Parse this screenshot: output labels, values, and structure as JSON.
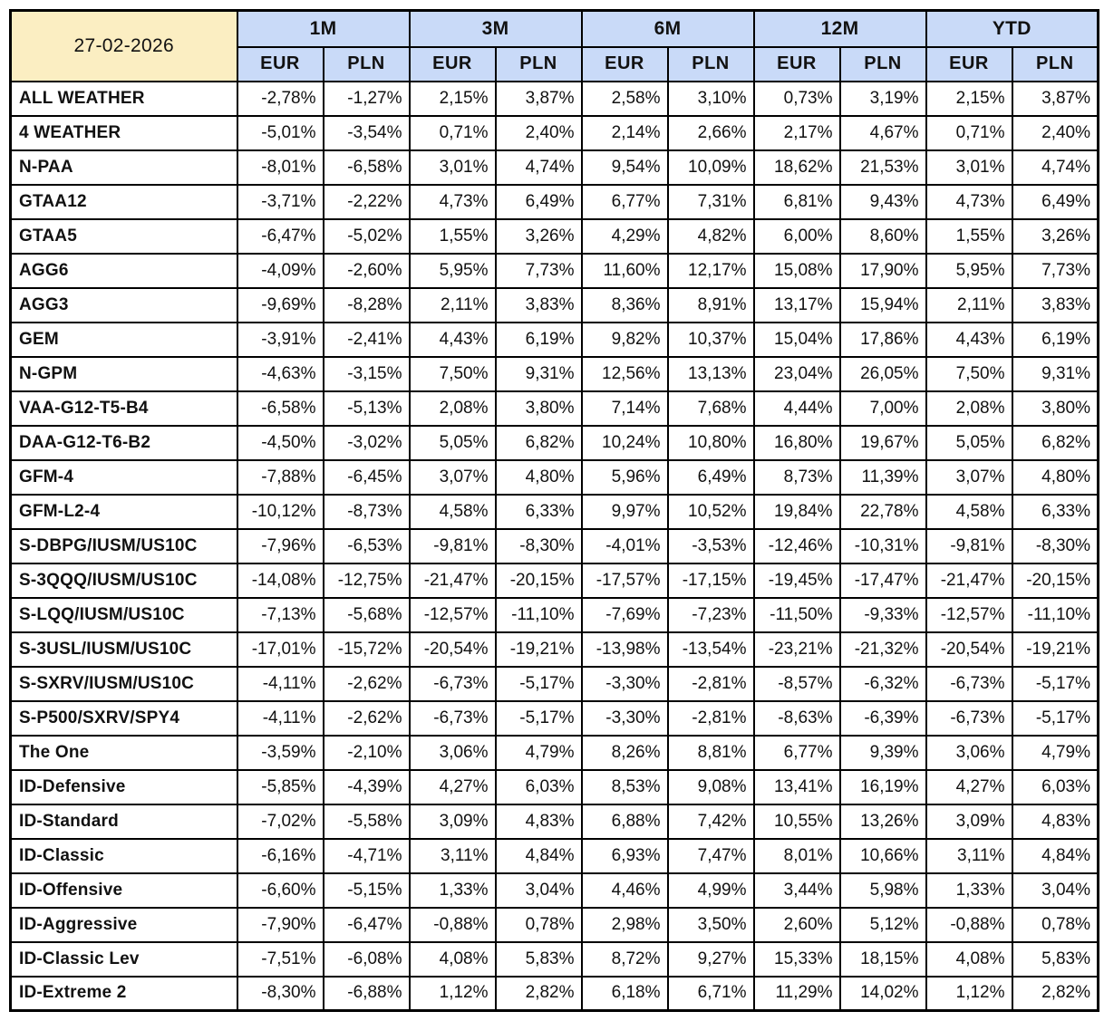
{
  "date_label": "27-02-2026",
  "colors": {
    "date_cell_background": "#FBEEC2",
    "header_background": "#C9DAF8",
    "grid_border": "#000000",
    "text": "#111111"
  },
  "chart_data": {
    "type": "table",
    "title": "27-02-2026",
    "column_groups": [
      "1M",
      "3M",
      "6M",
      "12M",
      "YTD"
    ],
    "sub_columns": [
      "EUR",
      "PLN"
    ],
    "columns": [
      "1M EUR",
      "1M PLN",
      "3M EUR",
      "3M PLN",
      "6M EUR",
      "6M PLN",
      "12M EUR",
      "12M PLN",
      "YTD EUR",
      "YTD PLN"
    ],
    "rows": [
      {
        "name": "ALL WEATHER",
        "values": [
          "-2,78%",
          "-1,27%",
          "2,15%",
          "3,87%",
          "2,58%",
          "3,10%",
          "0,73%",
          "3,19%",
          "2,15%",
          "3,87%"
        ]
      },
      {
        "name": "4 WEATHER",
        "values": [
          "-5,01%",
          "-3,54%",
          "0,71%",
          "2,40%",
          "2,14%",
          "2,66%",
          "2,17%",
          "4,67%",
          "0,71%",
          "2,40%"
        ]
      },
      {
        "name": "N-PAA",
        "values": [
          "-8,01%",
          "-6,58%",
          "3,01%",
          "4,74%",
          "9,54%",
          "10,09%",
          "18,62%",
          "21,53%",
          "3,01%",
          "4,74%"
        ]
      },
      {
        "name": "GTAA12",
        "values": [
          "-3,71%",
          "-2,22%",
          "4,73%",
          "6,49%",
          "6,77%",
          "7,31%",
          "6,81%",
          "9,43%",
          "4,73%",
          "6,49%"
        ]
      },
      {
        "name": "GTAA5",
        "values": [
          "-6,47%",
          "-5,02%",
          "1,55%",
          "3,26%",
          "4,29%",
          "4,82%",
          "6,00%",
          "8,60%",
          "1,55%",
          "3,26%"
        ]
      },
      {
        "name": "AGG6",
        "values": [
          "-4,09%",
          "-2,60%",
          "5,95%",
          "7,73%",
          "11,60%",
          "12,17%",
          "15,08%",
          "17,90%",
          "5,95%",
          "7,73%"
        ]
      },
      {
        "name": "AGG3",
        "values": [
          "-9,69%",
          "-8,28%",
          "2,11%",
          "3,83%",
          "8,36%",
          "8,91%",
          "13,17%",
          "15,94%",
          "2,11%",
          "3,83%"
        ]
      },
      {
        "name": "GEM",
        "values": [
          "-3,91%",
          "-2,41%",
          "4,43%",
          "6,19%",
          "9,82%",
          "10,37%",
          "15,04%",
          "17,86%",
          "4,43%",
          "6,19%"
        ]
      },
      {
        "name": "N-GPM",
        "values": [
          "-4,63%",
          "-3,15%",
          "7,50%",
          "9,31%",
          "12,56%",
          "13,13%",
          "23,04%",
          "26,05%",
          "7,50%",
          "9,31%"
        ]
      },
      {
        "name": "VAA-G12-T5-B4",
        "values": [
          "-6,58%",
          "-5,13%",
          "2,08%",
          "3,80%",
          "7,14%",
          "7,68%",
          "4,44%",
          "7,00%",
          "2,08%",
          "3,80%"
        ]
      },
      {
        "name": "DAA-G12-T6-B2",
        "values": [
          "-4,50%",
          "-3,02%",
          "5,05%",
          "6,82%",
          "10,24%",
          "10,80%",
          "16,80%",
          "19,67%",
          "5,05%",
          "6,82%"
        ]
      },
      {
        "name": "GFM-4",
        "values": [
          "-7,88%",
          "-6,45%",
          "3,07%",
          "4,80%",
          "5,96%",
          "6,49%",
          "8,73%",
          "11,39%",
          "3,07%",
          "4,80%"
        ]
      },
      {
        "name": "GFM-L2-4",
        "values": [
          "-10,12%",
          "-8,73%",
          "4,58%",
          "6,33%",
          "9,97%",
          "10,52%",
          "19,84%",
          "22,78%",
          "4,58%",
          "6,33%"
        ]
      },
      {
        "name": "S-DBPG/IUSM/US10C",
        "values": [
          "-7,96%",
          "-6,53%",
          "-9,81%",
          "-8,30%",
          "-4,01%",
          "-3,53%",
          "-12,46%",
          "-10,31%",
          "-9,81%",
          "-8,30%"
        ]
      },
      {
        "name": "S-3QQQ/IUSM/US10C",
        "values": [
          "-14,08%",
          "-12,75%",
          "-21,47%",
          "-20,15%",
          "-17,57%",
          "-17,15%",
          "-19,45%",
          "-17,47%",
          "-21,47%",
          "-20,15%"
        ]
      },
      {
        "name": "S-LQQ/IUSM/US10C",
        "values": [
          "-7,13%",
          "-5,68%",
          "-12,57%",
          "-11,10%",
          "-7,69%",
          "-7,23%",
          "-11,50%",
          "-9,33%",
          "-12,57%",
          "-11,10%"
        ]
      },
      {
        "name": "S-3USL/IUSM/US10C",
        "values": [
          "-17,01%",
          "-15,72%",
          "-20,54%",
          "-19,21%",
          "-13,98%",
          "-13,54%",
          "-23,21%",
          "-21,32%",
          "-20,54%",
          "-19,21%"
        ]
      },
      {
        "name": "S-SXRV/IUSM/US10C",
        "values": [
          "-4,11%",
          "-2,62%",
          "-6,73%",
          "-5,17%",
          "-3,30%",
          "-2,81%",
          "-8,57%",
          "-6,32%",
          "-6,73%",
          "-5,17%"
        ]
      },
      {
        "name": "S-P500/SXRV/SPY4",
        "values": [
          "-4,11%",
          "-2,62%",
          "-6,73%",
          "-5,17%",
          "-3,30%",
          "-2,81%",
          "-8,63%",
          "-6,39%",
          "-6,73%",
          "-5,17%"
        ]
      },
      {
        "name": "The One",
        "values": [
          "-3,59%",
          "-2,10%",
          "3,06%",
          "4,79%",
          "8,26%",
          "8,81%",
          "6,77%",
          "9,39%",
          "3,06%",
          "4,79%"
        ]
      },
      {
        "name": "ID-Defensive",
        "values": [
          "-5,85%",
          "-4,39%",
          "4,27%",
          "6,03%",
          "8,53%",
          "9,08%",
          "13,41%",
          "16,19%",
          "4,27%",
          "6,03%"
        ]
      },
      {
        "name": "ID-Standard",
        "values": [
          "-7,02%",
          "-5,58%",
          "3,09%",
          "4,83%",
          "6,88%",
          "7,42%",
          "10,55%",
          "13,26%",
          "3,09%",
          "4,83%"
        ]
      },
      {
        "name": "ID-Classic",
        "values": [
          "-6,16%",
          "-4,71%",
          "3,11%",
          "4,84%",
          "6,93%",
          "7,47%",
          "8,01%",
          "10,66%",
          "3,11%",
          "4,84%"
        ]
      },
      {
        "name": "ID-Offensive",
        "values": [
          "-6,60%",
          "-5,15%",
          "1,33%",
          "3,04%",
          "4,46%",
          "4,99%",
          "3,44%",
          "5,98%",
          "1,33%",
          "3,04%"
        ]
      },
      {
        "name": "ID-Aggressive",
        "values": [
          "-7,90%",
          "-6,47%",
          "-0,88%",
          "0,78%",
          "2,98%",
          "3,50%",
          "2,60%",
          "5,12%",
          "-0,88%",
          "0,78%"
        ]
      },
      {
        "name": "ID-Classic Lev",
        "values": [
          "-7,51%",
          "-6,08%",
          "4,08%",
          "5,83%",
          "8,72%",
          "9,27%",
          "15,33%",
          "18,15%",
          "4,08%",
          "5,83%"
        ]
      },
      {
        "name": "ID-Extreme 2",
        "values": [
          "-8,30%",
          "-6,88%",
          "1,12%",
          "2,82%",
          "6,18%",
          "6,71%",
          "11,29%",
          "14,02%",
          "1,12%",
          "2,82%"
        ]
      }
    ]
  }
}
